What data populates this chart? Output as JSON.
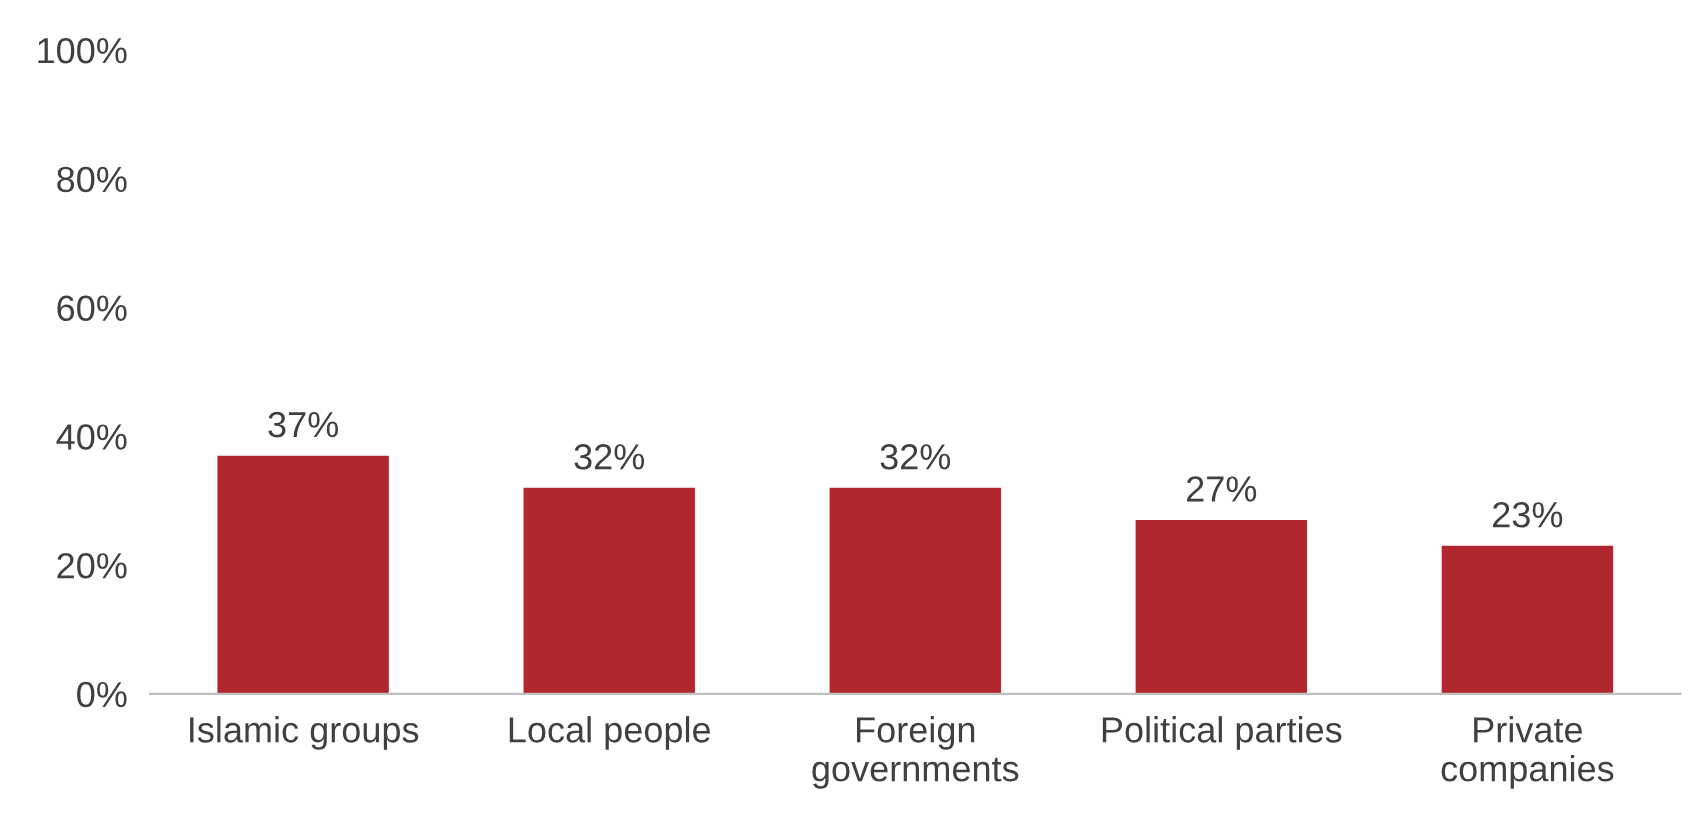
{
  "chart_data": {
    "type": "bar",
    "categories": [
      "Islamic groups",
      "Local people",
      "Foreign\ngovernments",
      "Political parties",
      "Private\ncompanies"
    ],
    "values": [
      37,
      32,
      32,
      27,
      23
    ],
    "value_labels": [
      "37%",
      "32%",
      "32%",
      "27%",
      "23%"
    ],
    "color": "#b0282e",
    "ylim": [
      0,
      100
    ],
    "yticks": [
      {
        "value": 0,
        "label": "0%"
      },
      {
        "value": 20,
        "label": "20%"
      },
      {
        "value": 40,
        "label": "40%"
      },
      {
        "value": 60,
        "label": "60%"
      },
      {
        "value": 80,
        "label": "80%"
      },
      {
        "value": 100,
        "label": "100%"
      }
    ],
    "grid": false,
    "legend": false
  }
}
